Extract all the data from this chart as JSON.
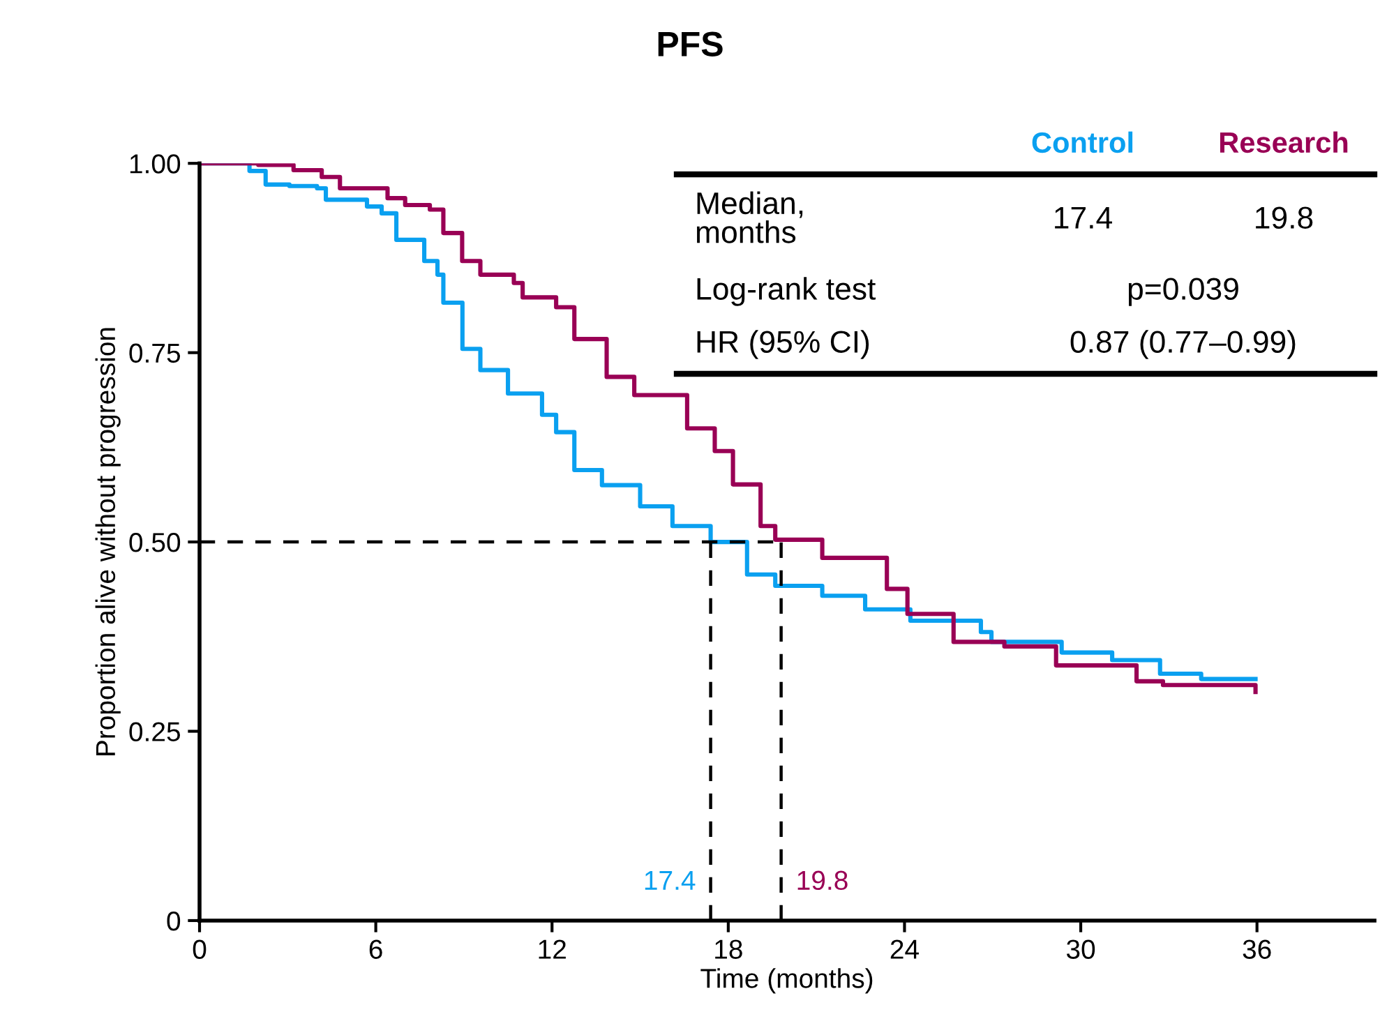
{
  "chart_data": {
    "type": "step",
    "title": "PFS",
    "xlabel": "Time (months)",
    "ylabel": "Proportion alive without progression",
    "xlim": [
      0,
      40
    ],
    "ylim": [
      0,
      1
    ],
    "xticks": [
      0,
      6,
      12,
      18,
      24,
      30,
      36
    ],
    "yticks": [
      0,
      {
        "value": 0.25,
        "label": "0.25"
      },
      {
        "value": 0.5,
        "label": "0.50"
      },
      {
        "value": 0.75,
        "label": "0.75"
      },
      {
        "value": 1,
        "label": "1.00"
      }
    ],
    "grid": false,
    "legend": "top right",
    "marker": "none",
    "line_style": "solid",
    "series": [
      {
        "name": "Control",
        "color": "#0aa0f0",
        "x": [
          0,
          1.7,
          2.25,
          3.06,
          4.0,
          4.3,
          5.7,
          6.2,
          6.7,
          7.65,
          8.1,
          8.3,
          8.95,
          9.56,
          10.5,
          11.66,
          12.14,
          12.76,
          13.7,
          15.0,
          16.1,
          17.4,
          18.64,
          19.6,
          21.2,
          22.66,
          24.2,
          26.6,
          26.96,
          29.35,
          31.07,
          32.7,
          34.1,
          35.95
        ],
        "values": [
          1.0,
          0.99,
          0.972,
          0.97,
          0.967,
          0.952,
          0.943,
          0.934,
          0.899,
          0.871,
          0.853,
          0.816,
          0.755,
          0.727,
          0.696,
          0.668,
          0.645,
          0.595,
          0.575,
          0.547,
          0.521,
          0.5,
          0.457,
          0.442,
          0.429,
          0.411,
          0.396,
          0.381,
          0.368,
          0.354,
          0.344,
          0.326,
          0.319,
          0.319
        ]
      },
      {
        "name": "Research",
        "color": "#990055",
        "x": [
          0,
          2.0,
          3.2,
          4.16,
          4.78,
          6.4,
          7.0,
          7.84,
          8.3,
          8.94,
          9.56,
          10.7,
          11.0,
          12.14,
          12.76,
          13.86,
          14.8,
          16.6,
          17.54,
          18.16,
          19.1,
          19.6,
          21.2,
          23.4,
          24.1,
          25.67,
          27.4,
          29.16,
          31.9,
          32.8,
          35.85,
          35.95
        ],
        "values": [
          1.0,
          0.998,
          0.991,
          0.982,
          0.967,
          0.954,
          0.945,
          0.939,
          0.908,
          0.871,
          0.853,
          0.842,
          0.823,
          0.81,
          0.768,
          0.718,
          0.694,
          0.65,
          0.62,
          0.576,
          0.521,
          0.503,
          0.479,
          0.438,
          0.405,
          0.368,
          0.362,
          0.337,
          0.316,
          0.311,
          0.311,
          0.302
        ]
      }
    ],
    "ref_lines": [
      {
        "axis": "y",
        "value": 0.5,
        "color": "#000000",
        "line_style": "dashed"
      },
      {
        "axis": "x",
        "value": 17.4,
        "label": "17.4",
        "color": "#000000",
        "line_style": "dashed"
      },
      {
        "axis": "x",
        "value": 19.8,
        "label": "19.8",
        "color": "#000000",
        "line_style": "dashed"
      }
    ],
    "annotations": [
      "Median,\nmonths",
      "17.4",
      "19.8",
      "Log-rank test",
      "p=0.039",
      "HR (95% CI)",
      "0.87 (0.77–0.99)"
    ]
  }
}
